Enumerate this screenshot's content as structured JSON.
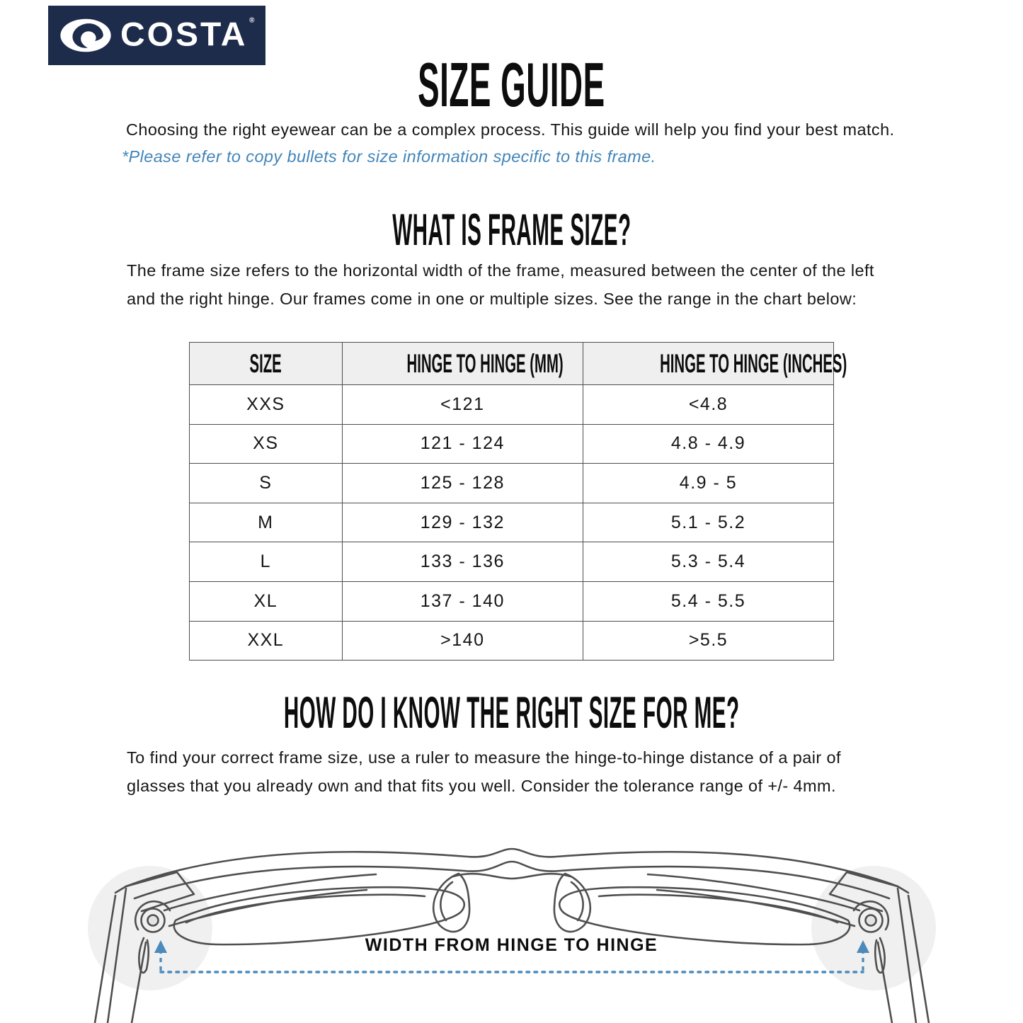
{
  "logo": {
    "brand": "COSTA",
    "registered": "®",
    "icon": "costa-wave-icon"
  },
  "page": {
    "title": "SIZE GUIDE",
    "intro": "Choosing the right eyewear can be a complex process. This guide will help you find your best match.",
    "note": "*Please refer to copy bullets for size information specific to this frame."
  },
  "section_frame_size": {
    "heading": "WHAT IS FRAME SIZE?",
    "body": "The frame size refers to the horizontal width of the frame, measured between the center of the left\nand the right hinge. Our frames come in one or multiple sizes. See the range in the chart below:"
  },
  "size_table": {
    "columns": [
      "SIZE",
      "HINGE TO HINGE (MM)",
      "HINGE TO HINGE (INCHES)"
    ],
    "rows": [
      [
        "XXS",
        "<121",
        "<4.8"
      ],
      [
        "XS",
        "121 - 124",
        "4.8 - 4.9"
      ],
      [
        "S",
        "125 - 128",
        "4.9 - 5"
      ],
      [
        "M",
        "129 - 132",
        "5.1 - 5.2"
      ],
      [
        "L",
        "133 - 136",
        "5.3 - 5.4"
      ],
      [
        "XL",
        "137 - 140",
        "5.4 - 5.5"
      ],
      [
        "XXL",
        ">140",
        ">5.5"
      ]
    ]
  },
  "section_right_size": {
    "heading": "HOW DO I KNOW THE RIGHT SIZE FOR ME?",
    "body": "To find your correct frame size, use a ruler to measure the hinge-to-hinge distance of a pair of\nglasses that you already own and that fits you well. Consider the tolerance range of +/- 4mm."
  },
  "diagram": {
    "label": "WIDTH FROM HINGE TO HINGE"
  },
  "colors": {
    "navy": "#1e2c4c",
    "accent_blue": "#4285b8",
    "table_border": "#4d4d4d",
    "table_header_bg": "#efefef",
    "line_art": "#4f4f4f",
    "hinge_highlight": "#f0f0f0"
  }
}
